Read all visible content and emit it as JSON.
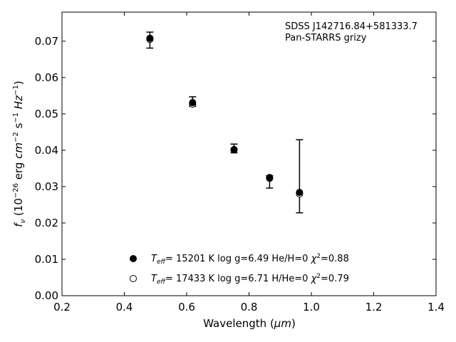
{
  "chart_data": {
    "type": "scatter",
    "xlabel_main": "Wavelength (",
    "xlabel_unit": "μm",
    "xlabel_close": ")",
    "ylabel_parts": {
      "f": "f",
      "nu": "ν",
      "open": " (10",
      "exp26": "−26",
      "erg": " erg ",
      "cm": "cm",
      "expm2": "−2",
      "s": " s",
      "expm1a": "−1",
      "hz": " Hz",
      "expm1b": "−1",
      "close": ")"
    },
    "xlim": [
      0.2,
      1.4
    ],
    "ylim": [
      0.0,
      0.078
    ],
    "x_ticks": [
      "0.2",
      "0.4",
      "0.6",
      "0.8",
      "1.0",
      "1.2",
      "1.4"
    ],
    "x_tick_values": [
      0.2,
      0.4,
      0.6,
      0.8,
      1.0,
      1.2,
      1.4
    ],
    "y_ticks": [
      "0.00",
      "0.01",
      "0.02",
      "0.03",
      "0.04",
      "0.05",
      "0.06",
      "0.07"
    ],
    "y_tick_values": [
      0.0,
      0.01,
      0.02,
      0.03,
      0.04,
      0.05,
      0.06,
      0.07
    ],
    "annotation": [
      "SDSS J142716.84+581333.7",
      "Pan-STARRS grizy"
    ],
    "observed": {
      "x": [
        0.482,
        0.619,
        0.752,
        0.866,
        0.962
      ],
      "y": [
        0.0703,
        0.0529,
        0.0405,
        0.0313,
        0.0286
      ],
      "yerr_low": [
        0.0022,
        0.0008,
        0.0012,
        0.0017,
        0.0058
      ],
      "yerr_high": [
        0.0022,
        0.0018,
        0.0012,
        0.0017,
        0.0143
      ]
    },
    "series": [
      {
        "marker": "filled",
        "x": [
          0.482,
          0.619,
          0.752,
          0.866,
          0.962
        ],
        "y": [
          0.0708,
          0.0531,
          0.0402,
          0.0325,
          0.0284
        ],
        "label": {
          "T": "T",
          "eff": "eff",
          "rest": "= 15201 K  log g=6.49  He/H=0  ",
          "chi": "χ",
          "sq": "2",
          "chi_val": "=0.88"
        }
      },
      {
        "marker": "open",
        "x": [
          0.482,
          0.619,
          0.752,
          0.866,
          0.962
        ],
        "y": [
          0.0705,
          0.0527,
          0.0401,
          0.0323,
          0.028
        ],
        "label": {
          "T": "T",
          "eff": "eff",
          "rest": "= 17433 K  log g=6.71  H/He=0  ",
          "chi": "χ",
          "sq": "2",
          "chi_val": "=0.79"
        }
      }
    ],
    "legend_position": "lower-center"
  }
}
